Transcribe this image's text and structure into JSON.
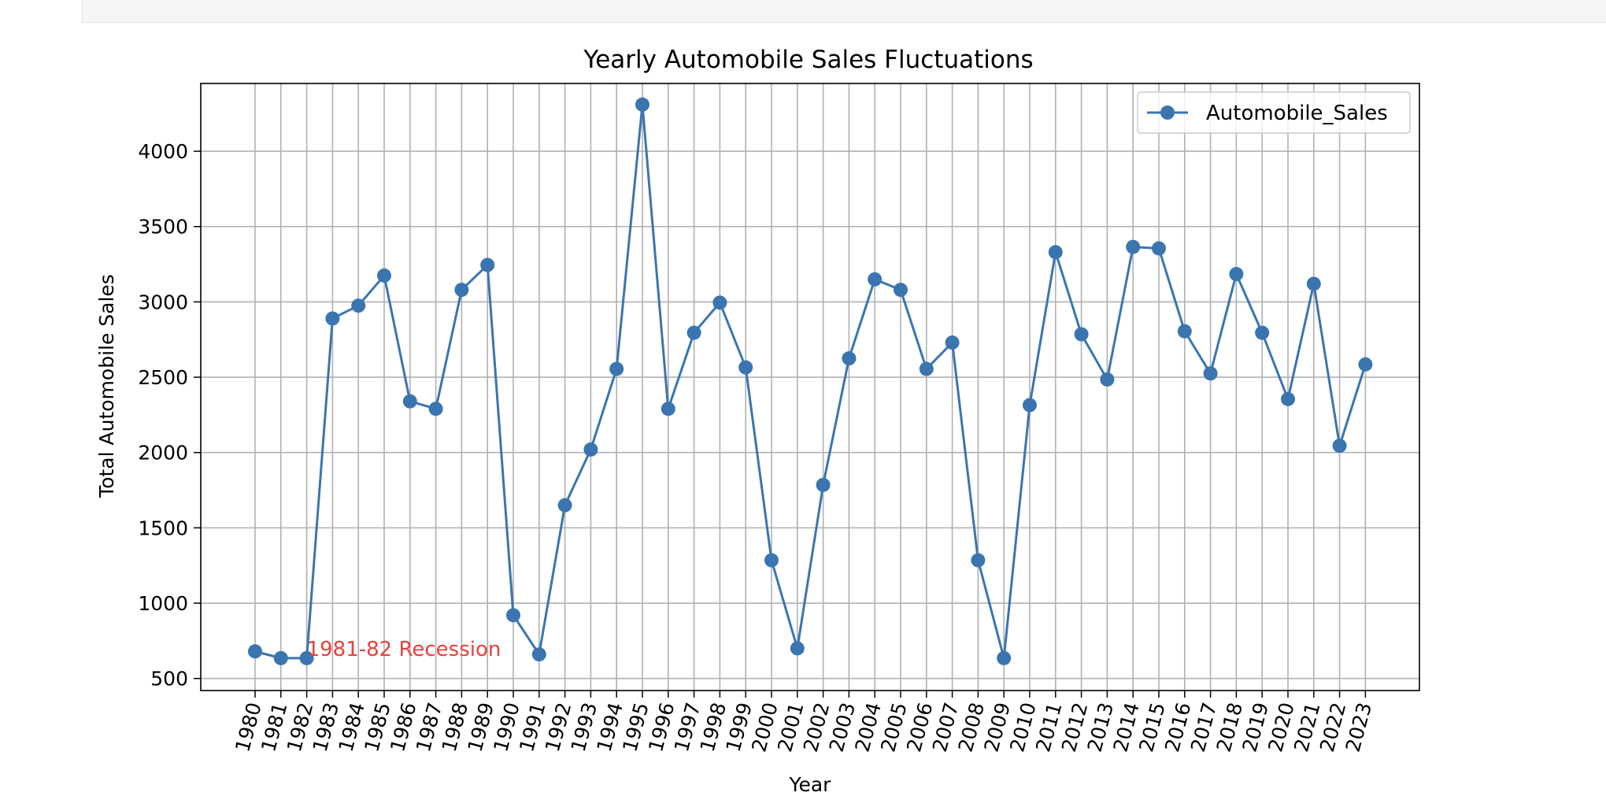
{
  "chart_data": {
    "type": "line",
    "title": "Yearly Automobile Sales Fluctuations",
    "xlabel": "Year",
    "ylabel": "Total Automobile Sales",
    "x": [
      1980,
      1981,
      1982,
      1983,
      1984,
      1985,
      1986,
      1987,
      1988,
      1989,
      1990,
      1991,
      1992,
      1993,
      1994,
      1995,
      1996,
      1997,
      1998,
      1999,
      2000,
      2001,
      2002,
      2003,
      2004,
      2005,
      2006,
      2007,
      2008,
      2009,
      2010,
      2011,
      2012,
      2013,
      2014,
      2015,
      2016,
      2017,
      2018,
      2019,
      2020,
      2021,
      2022,
      2023
    ],
    "series": [
      {
        "name": "Automobile_Sales",
        "values": [
          680,
          635,
          635,
          2890,
          2975,
          3175,
          2340,
          2290,
          3080,
          3245,
          920,
          660,
          1650,
          2020,
          2555,
          4310,
          2290,
          2795,
          2995,
          2565,
          1285,
          700,
          1785,
          2625,
          3150,
          3080,
          2555,
          2730,
          1285,
          635,
          2315,
          3330,
          2785,
          2485,
          3365,
          3355,
          2805,
          2525,
          3185,
          2795,
          2355,
          3120,
          2045,
          2585
        ],
        "color": "#3a75b0"
      }
    ],
    "yticks": [
      500,
      1000,
      1500,
      2000,
      2500,
      3000,
      3500,
      4000
    ],
    "ylim": [
      420,
      4450
    ],
    "grid": true,
    "legend": "top-right",
    "annotation": {
      "text": "1981-82 Recession",
      "x": 1982,
      "y": 650,
      "color": "#e8413c"
    }
  }
}
